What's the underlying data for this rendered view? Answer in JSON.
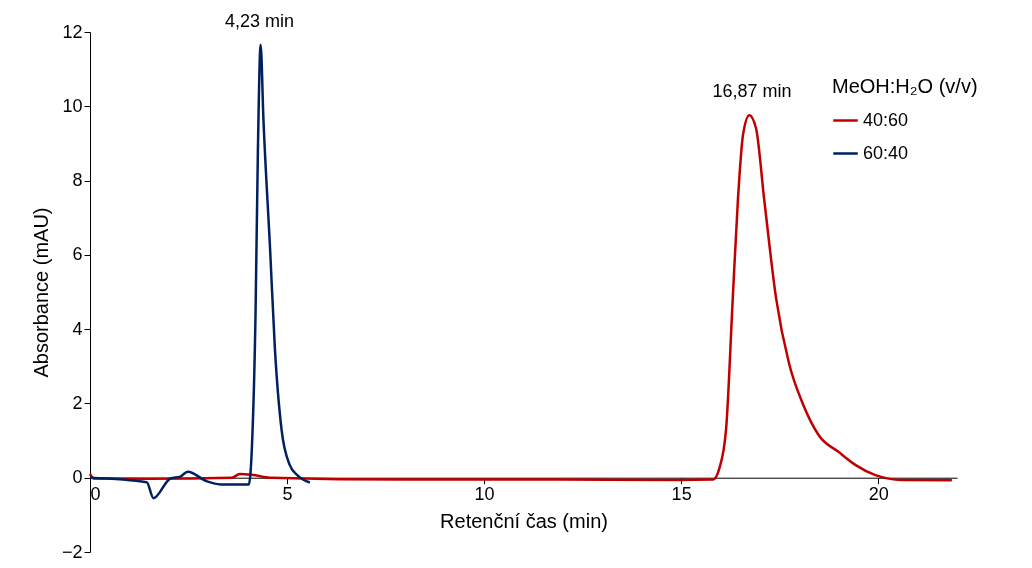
{
  "chart_data": {
    "type": "line",
    "xlabel": "Retenční čas (min)",
    "ylabel": "Absorbance (mAU)",
    "legend_title": "MeOH:H₂O (v/v)",
    "xlim": [
      0,
      22
    ],
    "xticks": [
      0,
      5,
      10,
      15,
      20
    ],
    "ylim": [
      -2,
      12
    ],
    "yticks": [
      -2,
      0,
      2,
      4,
      6,
      8,
      10,
      12
    ],
    "grid": false,
    "legend": "top right",
    "marker": "none",
    "line_style": "solid",
    "annotations": [
      {
        "text": "4,23 min",
        "x": 4.3,
        "y": 11.66
      },
      {
        "text": "16,87 min",
        "x": 16.8,
        "y": 9.76
      }
    ],
    "series": [
      {
        "name": "40:60",
        "color": "#c00000",
        "x": [
          0,
          0.1,
          1.5,
          3.6,
          3.8,
          4.1,
          4.6,
          8,
          12,
          14.88,
          15.81,
          15.97,
          16.14,
          16.31,
          16.44,
          16.57,
          16.73,
          16.9,
          17.11,
          17.41,
          17.74,
          18.08,
          18.5,
          19.0,
          19.43,
          19.93,
          20.61,
          21.87
        ],
        "values": [
          0.1,
          -0.02,
          -0.03,
          0.0,
          0.1,
          0.08,
          0.0,
          -0.05,
          -0.05,
          -0.06,
          -0.05,
          0.25,
          1.3,
          4.83,
          7.47,
          9.23,
          9.76,
          9.41,
          7.47,
          4.83,
          3.07,
          2.01,
          1.13,
          0.69,
          0.34,
          0.07,
          -0.06,
          -0.07
        ]
      },
      {
        "name": "60:40",
        "color": "#002060",
        "x": [
          0,
          1.44,
          1.61,
          2.04,
          2.29,
          2.48,
          2.97,
          3.31,
          4.03,
          4.11,
          4.2,
          4.26,
          4.33,
          4.4,
          4.57,
          4.69,
          4.86,
          5.07,
          5.28,
          5.58
        ],
        "values": [
          0,
          -0.12,
          -0.55,
          -0.02,
          0.03,
          0.16,
          -0.1,
          -0.18,
          -0.18,
          0.86,
          4.39,
          8.79,
          11.66,
          9.68,
          6.15,
          3.51,
          1.3,
          0.34,
          0.05,
          -0.13
        ]
      }
    ]
  }
}
